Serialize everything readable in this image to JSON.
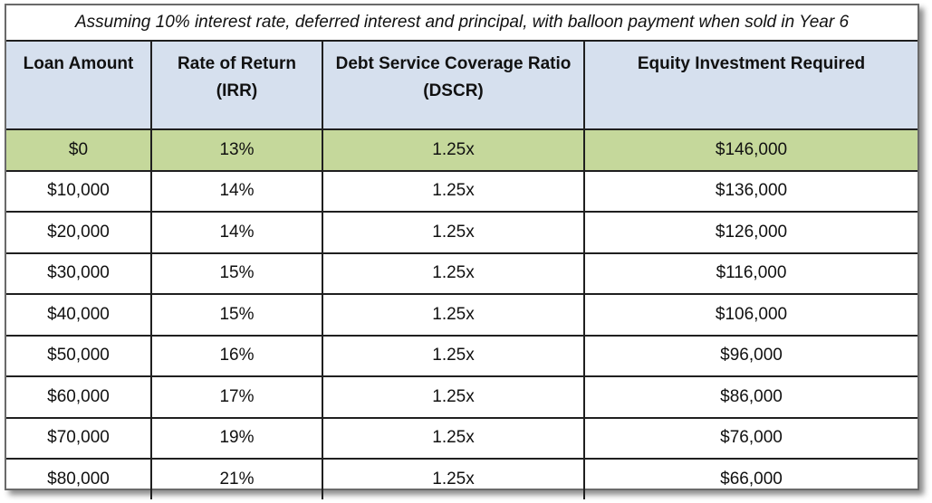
{
  "caption": "Assuming 10% interest rate, deferred interest and principal, with balloon payment when sold in Year 6",
  "headers": [
    {
      "line1": "Loan Amount",
      "line2": ""
    },
    {
      "line1": "Rate of Return",
      "line2": "(IRR)"
    },
    {
      "line1": "Debt Service Coverage Ratio",
      "line2": "(DSCR)"
    },
    {
      "line1": "Equity Investment Required",
      "line2": ""
    }
  ],
  "rows": [
    {
      "loan": "$0",
      "irr": "13%",
      "dscr": "1.25x",
      "equity": "$146,000"
    },
    {
      "loan": "$10,000",
      "irr": "14%",
      "dscr": "1.25x",
      "equity": "$136,000"
    },
    {
      "loan": "$20,000",
      "irr": "14%",
      "dscr": "1.25x",
      "equity": "$126,000"
    },
    {
      "loan": "$30,000",
      "irr": "15%",
      "dscr": "1.25x",
      "equity": "$116,000"
    },
    {
      "loan": "$40,000",
      "irr": "15%",
      "dscr": "1.25x",
      "equity": "$106,000"
    },
    {
      "loan": "$50,000",
      "irr": "16%",
      "dscr": "1.25x",
      "equity": "$96,000"
    },
    {
      "loan": "$60,000",
      "irr": "17%",
      "dscr": "1.25x",
      "equity": "$86,000"
    },
    {
      "loan": "$70,000",
      "irr": "19%",
      "dscr": "1.25x",
      "equity": "$76,000"
    },
    {
      "loan": "$80,000",
      "irr": "21%",
      "dscr": "1.25x",
      "equity": "$66,000"
    }
  ],
  "colors": {
    "header_bg": "#d6e0ee",
    "highlight_bg": "#c5d89b"
  }
}
